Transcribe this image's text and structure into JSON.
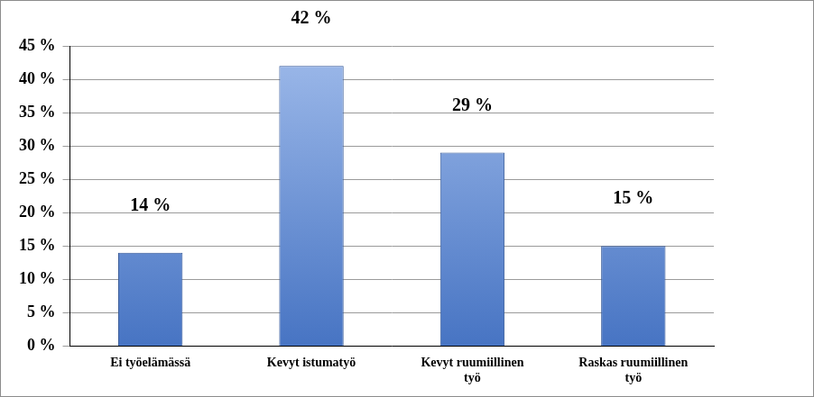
{
  "chart_data": {
    "type": "bar",
    "categories": [
      "Ei työelämässä",
      "Kevyt istumatyö",
      "Kevyt ruumiillinen työ",
      "Raskas ruumiillinen työ"
    ],
    "values": [
      14,
      42,
      29,
      15
    ],
    "value_labels": [
      "14 %",
      "42 %",
      "29 %",
      "15 %"
    ],
    "data_labels": true,
    "color": "#4f81d9",
    "ylim": [
      0,
      45
    ],
    "yticks": [
      {
        "value": 0,
        "label": "0 %"
      },
      {
        "value": 5,
        "label": "5 %"
      },
      {
        "value": 10,
        "label": "10 %"
      },
      {
        "value": 15,
        "label": "15 %"
      },
      {
        "value": 20,
        "label": "20 %"
      },
      {
        "value": 25,
        "label": "25 %"
      },
      {
        "value": 30,
        "label": "30 %"
      },
      {
        "value": 35,
        "label": "35 %"
      },
      {
        "value": 40,
        "label": "40 %"
      },
      {
        "value": 45,
        "label": "45 %"
      }
    ],
    "grid": true
  }
}
